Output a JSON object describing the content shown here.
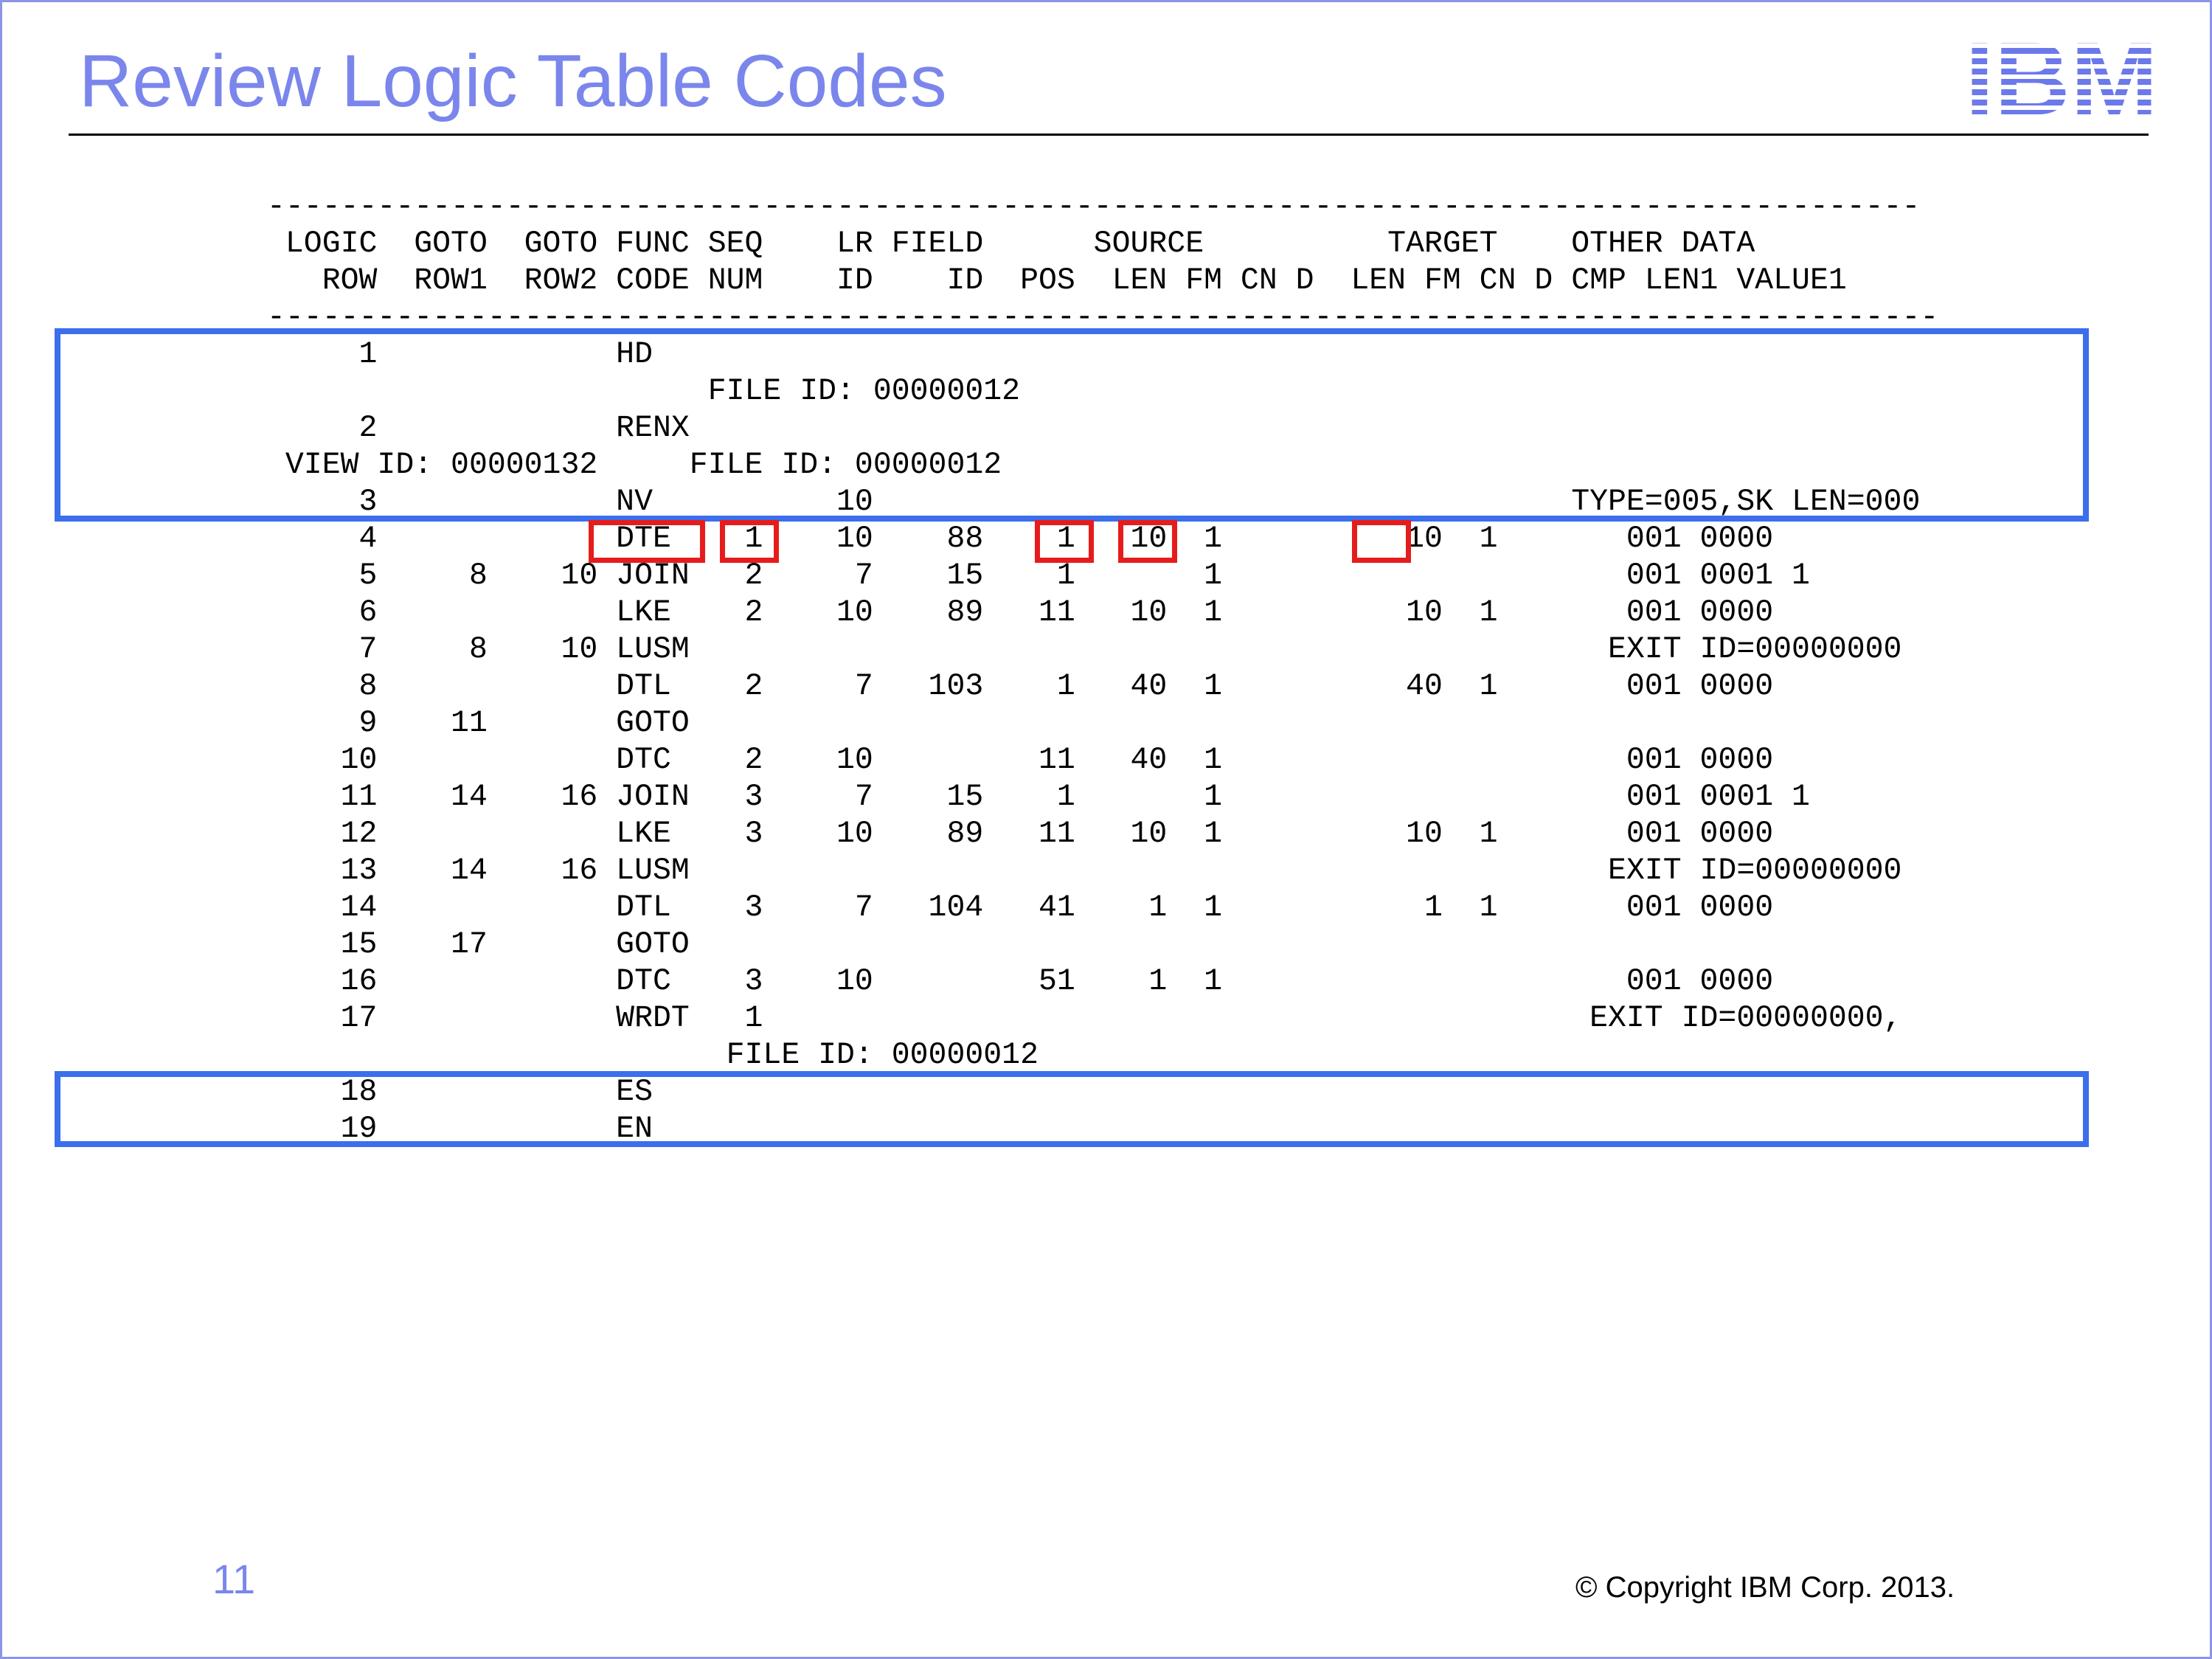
{
  "slide": {
    "title": "Review Logic Table Codes",
    "logo": "IBM",
    "page_number": "11",
    "copyright": "© Copyright IBM Corp. 2013."
  },
  "listing": {
    "lines": [
      "------------------------------------------------------------------------------------------",
      " LOGIC  GOTO  GOTO FUNC SEQ    LR FIELD      SOURCE          TARGET    OTHER DATA",
      "   ROW  ROW1  ROW2 CODE NUM    ID    ID  POS  LEN FM CN D  LEN FM CN D CMP LEN1 VALUE1",
      "-------------------------------------------------------------------------------------------",
      "     1             HD",
      "                        FILE ID: 00000012",
      "     2             RENX",
      " VIEW ID: 00000132     FILE ID: 00000012",
      "     3             NV          10                                      TYPE=005,SK LEN=000",
      "     4             DTE    1    10    88    1   10  1          10  1       001 0000",
      "     5     8    10 JOIN   2     7    15    1       1                      001 0001 1",
      "     6             LKE    2    10    89   11   10  1          10  1       001 0000",
      "     7     8    10 LUSM                                                  EXIT ID=00000000",
      "     8             DTL    2     7   103    1   40  1          40  1       001 0000",
      "     9    11       GOTO",
      "    10             DTC    2    10         11   40  1                      001 0000",
      "    11    14    16 JOIN   3     7    15    1       1                      001 0001 1",
      "    12             LKE    3    10    89   11   10  1          10  1       001 0000",
      "    13    14    16 LUSM                                                  EXIT ID=00000000",
      "    14             DTL    3     7   104   41    1  1           1  1       001 0000",
      "    15    17       GOTO",
      "    16             DTC    3    10         51    1  1                      001 0000",
      "    17             WRDT   1                                             EXIT ID=00000000,",
      "                         FILE ID: 00000012",
      "    18             ES",
      "    19             EN"
    ]
  },
  "highlights": {
    "blue_color": "#3b6fec",
    "red_color": "#e61c1c"
  }
}
